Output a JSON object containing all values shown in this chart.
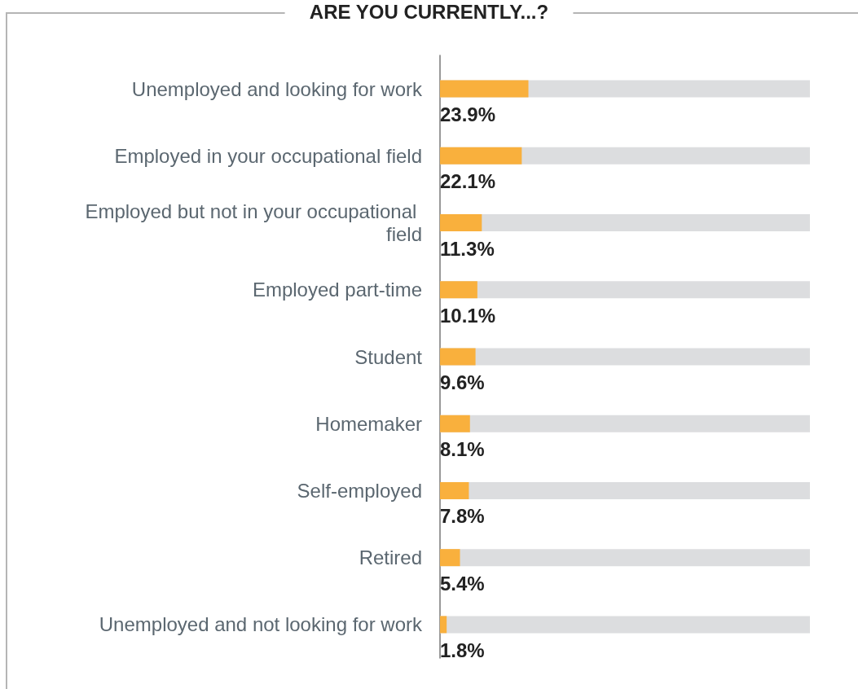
{
  "chart_data": {
    "type": "bar",
    "orientation": "horizontal",
    "title": "ARE YOU CURRENTLY...?",
    "categories": [
      "Unemployed and looking for work",
      "Employed in your occupational field",
      "Employed but not in your occupational field",
      "Employed part-time",
      "Student",
      "Homemaker",
      "Self-employed",
      "Retired",
      "Unemployed and not looking for work"
    ],
    "values": [
      23.9,
      22.1,
      11.3,
      10.1,
      9.6,
      8.1,
      7.8,
      5.4,
      1.8
    ],
    "value_labels": [
      "23.9%",
      "22.1%",
      "11.3%",
      "10.1%",
      "9.6%",
      "8.1%",
      "7.8%",
      "5.4%",
      "1.8%"
    ],
    "color": "#f9b03d",
    "xlim": [
      0,
      100
    ],
    "tick_labels": "y"
  }
}
